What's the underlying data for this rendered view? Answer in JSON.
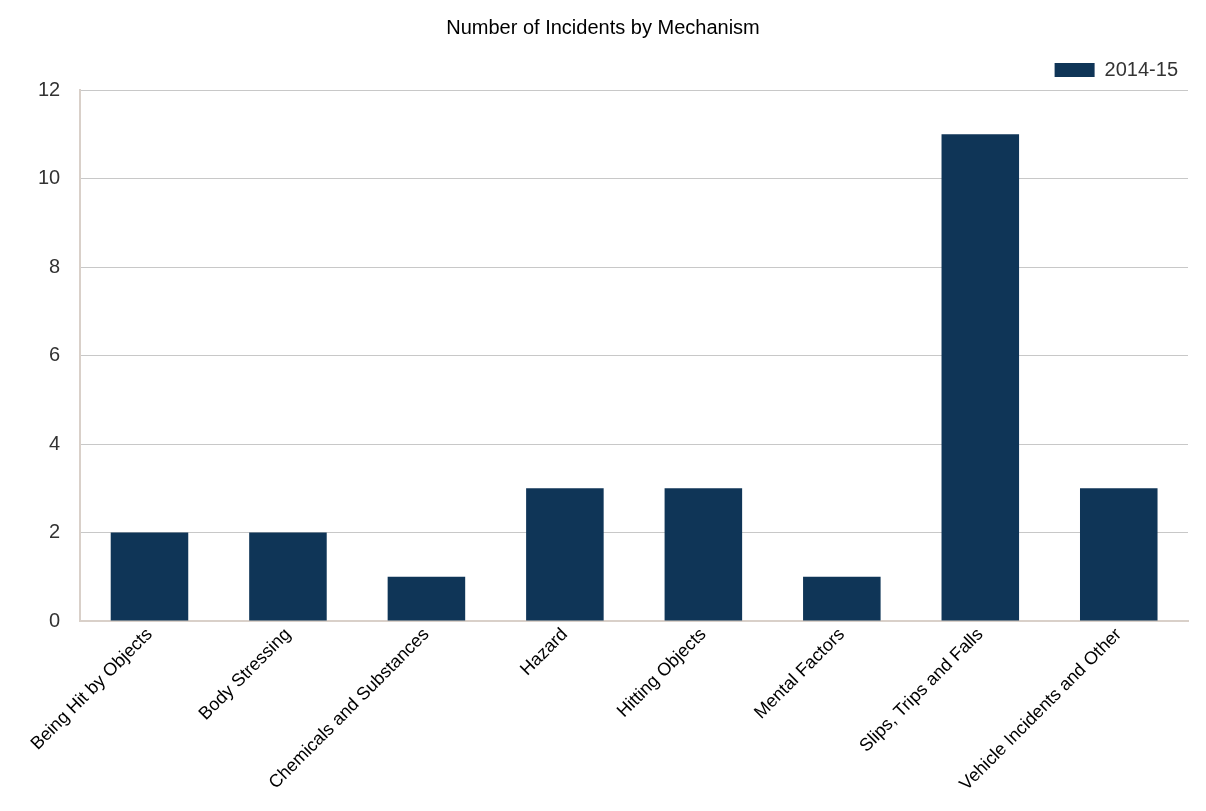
{
  "chart_data": {
    "type": "bar",
    "title": "Number of Incidents by Mechanism",
    "categories": [
      "Being Hit by Objects",
      "Body Stressing",
      "Chemicals and Substances",
      "Hazard",
      "Hitting Objects",
      "Mental Factors",
      "Slips, Trips and Falls",
      "Vehicle Incidents and Other"
    ],
    "series": [
      {
        "name": "2014-15",
        "color": "#0f3557",
        "values": [
          2,
          2,
          1,
          3,
          3,
          1,
          11,
          3
        ]
      }
    ],
    "ylim": [
      0,
      12
    ],
    "yticks": [
      0,
      2,
      4,
      6,
      8,
      10,
      12
    ],
    "grid": "y",
    "legend": "top right"
  }
}
